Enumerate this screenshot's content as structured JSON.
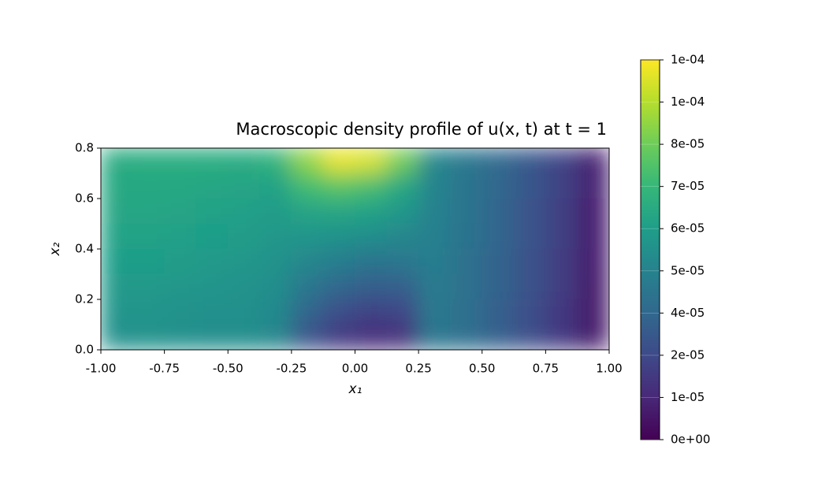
{
  "chart_data": {
    "type": "contour",
    "title": "Macroscopic density profile of u(x, t) at t = 1",
    "x_label": "x₁",
    "y_label": "x₂",
    "colormap": "viridis",
    "x": [
      -0.9375,
      -0.8125,
      -0.6875,
      -0.5625,
      -0.4375,
      -0.3125,
      -0.1875,
      -0.0625,
      0.0625,
      0.1875,
      0.3125,
      0.4375,
      0.5625,
      0.6875,
      0.8125,
      0.9375
    ],
    "y": [
      0.75,
      0.65,
      0.55,
      0.45,
      0.35,
      0.25,
      0.15,
      0.05
    ],
    "z": [
      [
        6.6e-05,
        6.7e-05,
        6.7e-05,
        6.7e-05,
        6.6e-05,
        7e-05,
        9e-05,
        0.000105,
        0.000102,
        8.5e-05,
        5e-05,
        4.3e-05,
        3.7e-05,
        3e-05,
        2.2e-05,
        1e-05
      ],
      [
        6.5e-05,
        6.5e-05,
        6.5e-05,
        6.4e-05,
        6.3e-05,
        6.2e-05,
        7.5e-05,
        8e-05,
        7.6e-05,
        6.5e-05,
        4.9e-05,
        4.2e-05,
        3.6e-05,
        2.9e-05,
        2.1e-05,
        1e-05
      ],
      [
        6.4e-05,
        6.4e-05,
        6.3e-05,
        6.2e-05,
        6.1e-05,
        5.9e-05,
        6.3e-05,
        6.4e-05,
        6.2e-05,
        5.7e-05,
        4.8e-05,
        4.2e-05,
        3.5e-05,
        2.8e-05,
        2e-05,
        9e-06
      ],
      [
        6.2e-05,
        6.2e-05,
        6.1e-05,
        6e-05,
        5.9e-05,
        5.7e-05,
        5.6e-05,
        5.5e-05,
        5.3e-05,
        5e-05,
        4.7e-05,
        4.1e-05,
        3.5e-05,
        2.8e-05,
        2e-05,
        9e-06
      ],
      [
        6e-05,
        6e-05,
        5.9e-05,
        5.8e-05,
        5.7e-05,
        5.5e-05,
        5e-05,
        4.6e-05,
        4.2e-05,
        4.3e-05,
        4.6e-05,
        4e-05,
        3.4e-05,
        2.7e-05,
        1.9e-05,
        9e-06
      ],
      [
        5.8e-05,
        5.8e-05,
        5.7e-05,
        5.6e-05,
        5.5e-05,
        5.3e-05,
        4.3e-05,
        3.6e-05,
        3.2e-05,
        3.3e-05,
        4.5e-05,
        4e-05,
        3.4e-05,
        2.7e-05,
        1.9e-05,
        8e-06
      ],
      [
        5.6e-05,
        5.6e-05,
        5.5e-05,
        5.4e-05,
        5.4e-05,
        5.1e-05,
        3.5e-05,
        2.6e-05,
        2.1e-05,
        2.3e-05,
        4.4e-05,
        3.9e-05,
        3.3e-05,
        2.6e-05,
        1.8e-05,
        8e-06
      ],
      [
        5.4e-05,
        5.5e-05,
        5.4e-05,
        5.3e-05,
        5.3e-05,
        5e-05,
        2.8e-05,
        1.8e-05,
        1.4e-05,
        1.5e-05,
        4.3e-05,
        3.9e-05,
        3.3e-05,
        2.6e-05,
        1.8e-05,
        8e-06
      ]
    ],
    "xlim": [
      -1,
      1
    ],
    "ylim": [
      0,
      0.8
    ],
    "xticks": [
      {
        "value": -1,
        "label": "-1.00"
      },
      {
        "value": -0.75,
        "label": "-0.75"
      },
      {
        "value": -0.5,
        "label": "-0.50"
      },
      {
        "value": -0.25,
        "label": "-0.25"
      },
      {
        "value": 0,
        "label": "0.00"
      },
      {
        "value": 0.25,
        "label": "0.25"
      },
      {
        "value": 0.5,
        "label": "0.50"
      },
      {
        "value": 0.75,
        "label": "0.75"
      },
      {
        "value": 1,
        "label": "1.00"
      }
    ],
    "yticks": [
      {
        "value": 0,
        "label": "0.0"
      },
      0.2,
      0.4,
      0.6,
      0.8
    ],
    "clim": [
      0,
      0.000108
    ],
    "cticks": [
      {
        "value": 0,
        "label": "0e+00"
      },
      {
        "value": 1.2e-05,
        "label": "1e-05"
      },
      {
        "value": 2.4e-05,
        "label": "2e-05"
      },
      {
        "value": 3.6e-05,
        "label": "4e-05"
      },
      {
        "value": 4.8e-05,
        "label": "5e-05"
      },
      {
        "value": 6e-05,
        "label": "6e-05"
      },
      {
        "value": 7.2e-05,
        "label": "7e-05"
      },
      {
        "value": 8.4e-05,
        "label": "8e-05"
      },
      {
        "value": 9.6e-05,
        "label": "1e-04"
      },
      {
        "value": 0.000108,
        "label": "1e-04"
      }
    ]
  }
}
